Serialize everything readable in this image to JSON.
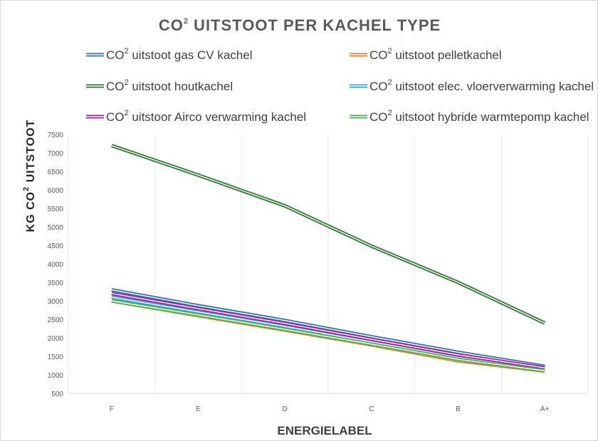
{
  "chart_data": {
    "type": "line",
    "title": "CO",
    "title_sup": "2",
    "title_rest": " UITSTOOT PER KACHEL TYPE",
    "xlabel": "ENERGIELABEL",
    "ylabel": "KG CO",
    "ylabel_sup": "2",
    "ylabel_rest": " UITSTOOT",
    "categories": [
      "F",
      "E",
      "D",
      "C",
      "B",
      "A+"
    ],
    "ylim": [
      500,
      7500
    ],
    "yticks": [
      500,
      1000,
      1500,
      2000,
      2500,
      3000,
      3500,
      4000,
      4500,
      5000,
      5500,
      6000,
      6500,
      7000,
      7500
    ],
    "grid": "vertical",
    "legend_position": "top",
    "series": [
      {
        "name_pre": "CO",
        "name_sup": "2",
        "name_post": " uitstoot gas CV kachel",
        "color": "#2e75b6",
        "values": [
          3300,
          2870,
          2470,
          2030,
          1610,
          1230
        ]
      },
      {
        "name_pre": "CO",
        "name_sup": "2",
        "name_post": " uitstoot pelletkachel",
        "color": "#ed7d31",
        "values": [
          3000,
          2600,
          2210,
          1810,
          1380,
          1100
        ]
      },
      {
        "name_pre": "CO",
        "name_sup": "2",
        "name_post": " uitstoot houtkachel",
        "color": "#2e7d32",
        "values": [
          7200,
          6400,
          5570,
          4480,
          3500,
          2400
        ]
      },
      {
        "name_pre": "CO",
        "name_sup": "2",
        "name_post": " uitstoot elec. vloerverwarming kachel",
        "color": "#29a8e0",
        "values": [
          3100,
          2700,
          2310,
          1890,
          1470,
          1150
        ]
      },
      {
        "name_pre": "CO",
        "name_sup": "2",
        "name_post": " uitstoor Airco verwarming kachel",
        "color": "#a020a0",
        "values": [
          3200,
          2790,
          2390,
          1960,
          1540,
          1190
        ]
      },
      {
        "name_pre": "CO",
        "name_sup": "2",
        "name_post": " uitstoot hybride warmtepomp kachel",
        "color": "#4caf50",
        "values": [
          3000,
          2620,
          2230,
          1830,
          1420,
          1110
        ]
      }
    ]
  }
}
